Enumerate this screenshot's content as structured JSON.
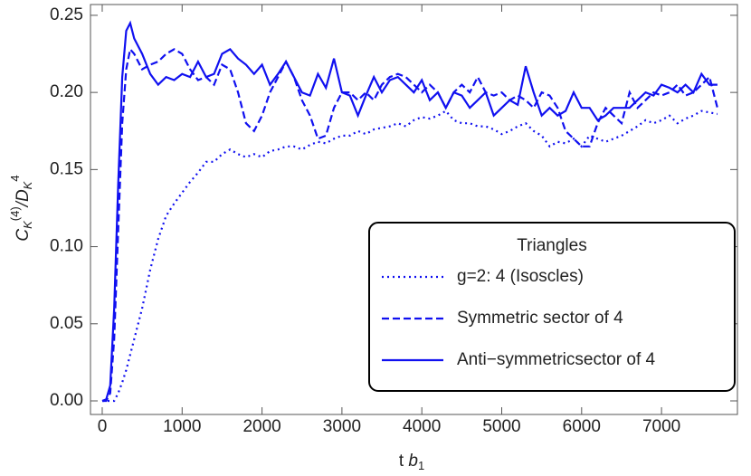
{
  "chart_data": {
    "type": "line",
    "xlabel_parts": [
      "t ",
      "b",
      "1"
    ],
    "ylabel_parts": [
      "C",
      "K",
      "(4)",
      "/D",
      "K",
      "4"
    ],
    "legend_title": "Triangles",
    "legend": "lower right",
    "xlim": [
      -147,
      7950
    ],
    "ylim": [
      -0.0088,
      0.257
    ],
    "xticks": [
      0,
      1000,
      2000,
      3000,
      4000,
      5000,
      6000,
      7000
    ],
    "yticks": [
      {
        "value": 0,
        "label": "0.00"
      },
      {
        "value": 0.05,
        "label": "0.05"
      },
      {
        "value": 0.1,
        "label": "0.10"
      },
      {
        "value": 0.15,
        "label": "0.15"
      },
      {
        "value": 0.2,
        "label": "0.20"
      },
      {
        "value": 0.25,
        "label": "0.25"
      }
    ],
    "x": [
      0,
      50,
      100,
      150,
      200,
      250,
      300,
      350,
      400,
      500,
      600,
      700,
      800,
      900,
      1000,
      1100,
      1200,
      1300,
      1400,
      1500,
      1600,
      1700,
      1800,
      1900,
      2000,
      2100,
      2200,
      2300,
      2400,
      2500,
      2600,
      2700,
      2800,
      2900,
      3000,
      3100,
      3200,
      3300,
      3400,
      3500,
      3600,
      3700,
      3800,
      3900,
      4000,
      4100,
      4200,
      4300,
      4400,
      4500,
      4600,
      4700,
      4800,
      4900,
      5000,
      5100,
      5200,
      5300,
      5400,
      5500,
      5600,
      5700,
      5800,
      5900,
      6000,
      6100,
      6200,
      6300,
      6400,
      6500,
      6600,
      6700,
      6800,
      6900,
      7000,
      7100,
      7200,
      7300,
      7400,
      7500,
      7600,
      7700
    ],
    "series": [
      {
        "name": "g=2: 4 (Isoscles)",
        "color": "#1010f0",
        "style": "dotted",
        "values": [
          0,
          0,
          0,
          0,
          0.005,
          0.012,
          0.02,
          0.03,
          0.04,
          0.06,
          0.085,
          0.105,
          0.12,
          0.128,
          0.135,
          0.142,
          0.148,
          0.155,
          0.155,
          0.16,
          0.163,
          0.16,
          0.158,
          0.16,
          0.158,
          0.162,
          0.163,
          0.165,
          0.165,
          0.163,
          0.166,
          0.168,
          0.167,
          0.17,
          0.172,
          0.172,
          0.175,
          0.173,
          0.176,
          0.177,
          0.178,
          0.18,
          0.178,
          0.182,
          0.184,
          0.183,
          0.185,
          0.188,
          0.182,
          0.18,
          0.18,
          0.178,
          0.178,
          0.176,
          0.173,
          0.175,
          0.178,
          0.18,
          0.175,
          0.172,
          0.165,
          0.168,
          0.167,
          0.17,
          0.165,
          0.172,
          0.17,
          0.168,
          0.17,
          0.172,
          0.175,
          0.178,
          0.182,
          0.18,
          0.182,
          0.185,
          0.18,
          0.183,
          0.185,
          0.188,
          0.187,
          0.186
        ]
      },
      {
        "name": "Symmetric sector of 4",
        "color": "#1010f0",
        "style": "dashed",
        "values": [
          0,
          0,
          0.005,
          0.04,
          0.11,
          0.18,
          0.215,
          0.228,
          0.225,
          0.215,
          0.218,
          0.22,
          0.225,
          0.228,
          0.225,
          0.215,
          0.208,
          0.21,
          0.205,
          0.218,
          0.215,
          0.2,
          0.18,
          0.175,
          0.185,
          0.2,
          0.21,
          0.22,
          0.21,
          0.195,
          0.185,
          0.17,
          0.172,
          0.19,
          0.2,
          0.2,
          0.195,
          0.2,
          0.195,
          0.205,
          0.21,
          0.212,
          0.21,
          0.205,
          0.2,
          0.205,
          0.2,
          0.19,
          0.2,
          0.205,
          0.2,
          0.21,
          0.2,
          0.198,
          0.2,
          0.195,
          0.198,
          0.195,
          0.19,
          0.2,
          0.198,
          0.19,
          0.175,
          0.17,
          0.165,
          0.165,
          0.18,
          0.19,
          0.185,
          0.18,
          0.2,
          0.19,
          0.195,
          0.2,
          0.198,
          0.2,
          0.205,
          0.198,
          0.2,
          0.205,
          0.21,
          0.19
        ]
      },
      {
        "name": "Anti−symmetricsector of 4",
        "color": "#1010f0",
        "style": "solid",
        "values": [
          0,
          0.001,
          0.01,
          0.06,
          0.14,
          0.21,
          0.24,
          0.245,
          0.235,
          0.225,
          0.212,
          0.205,
          0.21,
          0.208,
          0.212,
          0.21,
          0.22,
          0.21,
          0.212,
          0.225,
          0.228,
          0.222,
          0.218,
          0.212,
          0.218,
          0.205,
          0.212,
          0.22,
          0.21,
          0.2,
          0.198,
          0.212,
          0.203,
          0.222,
          0.2,
          0.198,
          0.185,
          0.198,
          0.21,
          0.2,
          0.208,
          0.21,
          0.205,
          0.2,
          0.208,
          0.195,
          0.2,
          0.19,
          0.2,
          0.198,
          0.19,
          0.195,
          0.2,
          0.185,
          0.19,
          0.195,
          0.192,
          0.217,
          0.2,
          0.185,
          0.19,
          0.185,
          0.188,
          0.2,
          0.19,
          0.19,
          0.182,
          0.185,
          0.19,
          0.19,
          0.19,
          0.195,
          0.2,
          0.198,
          0.205,
          0.203,
          0.2,
          0.205,
          0.2,
          0.212,
          0.205,
          0.205
        ]
      }
    ]
  }
}
